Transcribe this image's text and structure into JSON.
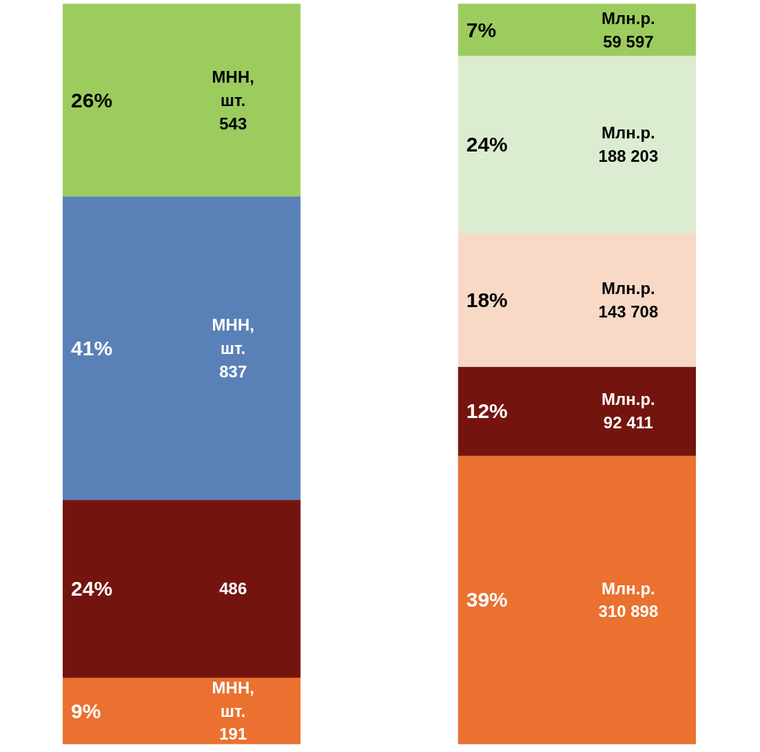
{
  "chart_data": {
    "type": "bar",
    "stacked": true,
    "categories": [
      null,
      null
    ],
    "ylim": [
      0,
      100
    ],
    "tick_labels": false,
    "grid": false,
    "series": [
      {
        "color": "#ea7130",
        "values": [
          9,
          39
        ],
        "value_labels": [
          "9%",
          "39%"
        ]
      },
      {
        "color": "#74140e",
        "values": [
          24,
          12
        ],
        "value_labels": [
          "24%",
          "12%"
        ]
      },
      {
        "color": "#5a80b8",
        "values": [
          41,
          null
        ],
        "value_labels": [
          "41%",
          null
        ]
      },
      {
        "color": "#f7d9c6",
        "values": [
          null,
          18
        ],
        "value_labels": [
          null,
          "18%"
        ]
      },
      {
        "color": "#dcecd0",
        "values": [
          null,
          24
        ],
        "value_labels": [
          null,
          "24%"
        ]
      },
      {
        "color": "#9ccc5e",
        "values": [
          26,
          7
        ],
        "value_labels": [
          "26%",
          "7%"
        ]
      }
    ],
    "annotations": [
      "МНН,\nшт.\n191",
      "Млн.р.\n310 898",
      "486",
      "Млн.р.\n92 411",
      "МНН,\nшт.\n837",
      "Млн.р.\n143 708",
      "Млн.р.\n188 203",
      "МНН,\nшт.\n543",
      "Млн.р.\n59 597"
    ]
  }
}
